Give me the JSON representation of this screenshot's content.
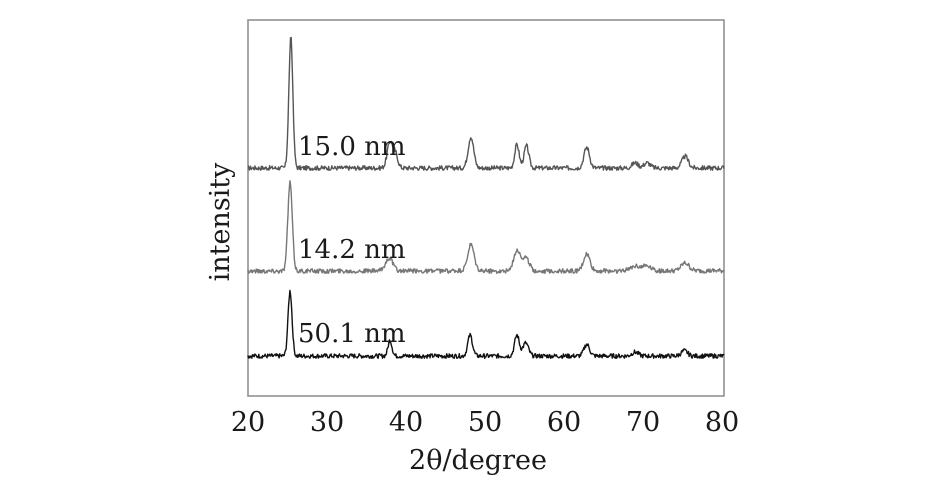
{
  "chart_data": {
    "type": "line",
    "title": "",
    "xlabel": "2θ/degree",
    "ylabel": "intensity",
    "xlim": [
      20,
      80
    ],
    "xticks": [
      "20",
      "30",
      "40",
      "50",
      "60",
      "70",
      "80"
    ],
    "yticks": [],
    "grid": false,
    "legend": "none (inline labels next to each trace)",
    "series": [
      {
        "name": "15.0 nm",
        "label": "15.0 nm",
        "color": "#555555",
        "offset": 2.0,
        "peaks": [
          {
            "x": 25.4,
            "h": 1.0,
            "w": 0.25
          },
          {
            "x": 37.9,
            "h": 0.2,
            "w": 0.35
          },
          {
            "x": 38.6,
            "h": 0.1,
            "w": 0.3
          },
          {
            "x": 48.1,
            "h": 0.24,
            "w": 0.35
          },
          {
            "x": 53.9,
            "h": 0.18,
            "w": 0.28
          },
          {
            "x": 55.1,
            "h": 0.17,
            "w": 0.3
          },
          {
            "x": 62.7,
            "h": 0.16,
            "w": 0.35
          },
          {
            "x": 68.8,
            "h": 0.04,
            "w": 0.4
          },
          {
            "x": 70.3,
            "h": 0.04,
            "w": 0.4
          },
          {
            "x": 75.1,
            "h": 0.09,
            "w": 0.4
          }
        ]
      },
      {
        "name": "14.2 nm",
        "label": "14.2 nm",
        "color": "#777777",
        "offset": 1.0,
        "peaks": [
          {
            "x": 25.3,
            "h": 0.68,
            "w": 0.28
          },
          {
            "x": 37.8,
            "h": 0.1,
            "w": 0.45
          },
          {
            "x": 48.1,
            "h": 0.2,
            "w": 0.4
          },
          {
            "x": 53.9,
            "h": 0.16,
            "w": 0.4
          },
          {
            "x": 55.0,
            "h": 0.1,
            "w": 0.45
          },
          {
            "x": 62.7,
            "h": 0.13,
            "w": 0.4
          },
          {
            "x": 68.8,
            "h": 0.04,
            "w": 0.6
          },
          {
            "x": 70.3,
            "h": 0.04,
            "w": 0.6
          },
          {
            "x": 75.1,
            "h": 0.06,
            "w": 0.5
          }
        ]
      },
      {
        "name": "50.1 nm",
        "label": "50.1 nm",
        "color": "#111111",
        "offset": 0.0,
        "peaks": [
          {
            "x": 25.3,
            "h": 0.5,
            "w": 0.25
          },
          {
            "x": 37.9,
            "h": 0.12,
            "w": 0.25
          },
          {
            "x": 48.0,
            "h": 0.16,
            "w": 0.3
          },
          {
            "x": 53.9,
            "h": 0.16,
            "w": 0.3
          },
          {
            "x": 55.0,
            "h": 0.1,
            "w": 0.35
          },
          {
            "x": 62.7,
            "h": 0.09,
            "w": 0.35
          },
          {
            "x": 68.8,
            "h": 0.03,
            "w": 0.4
          },
          {
            "x": 75.0,
            "h": 0.04,
            "w": 0.4
          }
        ]
      }
    ]
  }
}
